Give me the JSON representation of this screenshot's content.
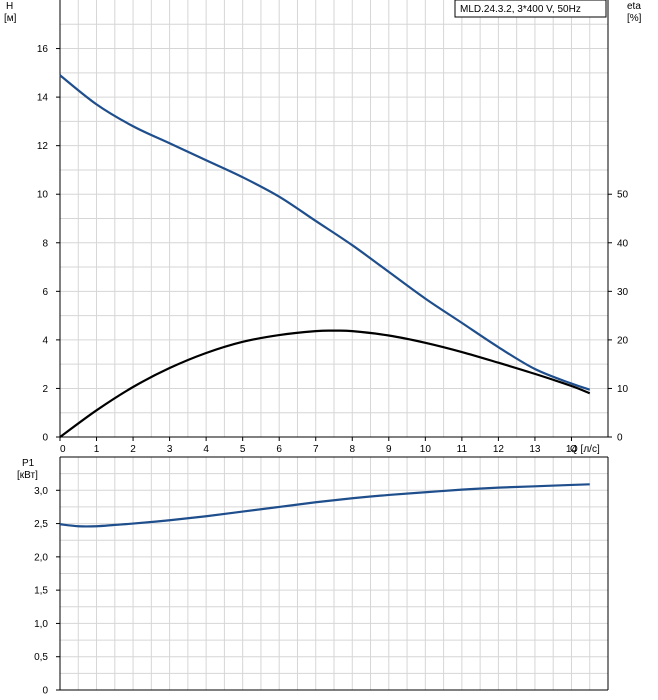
{
  "legend": {
    "label": "MLD.24.3.2, 3*400 V, 50Hz"
  },
  "colors": {
    "head_curve": "#1f4e8c",
    "eta_curve": "#000000",
    "power_curve": "#1f4e8c",
    "grid": "#d6d6d6"
  },
  "chart_data": [
    {
      "type": "line",
      "title": "",
      "xlabel": "Q [л/с]",
      "x_unit_label": "Q [л/с]",
      "xlim": [
        0,
        15
      ],
      "x_ticks": [
        0,
        1,
        2,
        3,
        4,
        5,
        6,
        7,
        8,
        9,
        10,
        11,
        12,
        13,
        14
      ],
      "x_tick_labels": [
        "0",
        "1",
        "2",
        "3",
        "4",
        "5",
        "6",
        "7",
        "8",
        "9",
        "10",
        "11",
        "12",
        "13",
        "14"
      ],
      "ylabel": "H",
      "ylabel_unit": "[м]",
      "ylim": [
        0,
        18
      ],
      "y_ticks": [
        0,
        2,
        4,
        6,
        8,
        10,
        12,
        14,
        16
      ],
      "y_tick_labels": [
        "0",
        "2",
        "4",
        "6",
        "8",
        "10",
        "12",
        "14",
        "16"
      ],
      "y2label": "eta",
      "y2label_unit": "[%]",
      "y2lim": [
        0,
        90
      ],
      "y2_ticks": [
        0,
        10,
        20,
        30,
        40,
        50
      ],
      "y2_tick_labels": [
        "0",
        "10",
        "20",
        "30",
        "40",
        "50"
      ],
      "grid": true,
      "legend_position": "top-right",
      "series": [
        {
          "name": "MLD.24.3.2, 3*400 V, 50Hz",
          "axis": "left",
          "x": [
            0,
            1,
            2,
            3,
            4,
            5,
            6,
            7,
            8,
            9,
            10,
            11,
            12,
            13,
            14,
            14.5
          ],
          "y": [
            14.9,
            13.7,
            12.8,
            12.1,
            11.4,
            10.7,
            9.9,
            8.9,
            7.9,
            6.8,
            5.7,
            4.7,
            3.7,
            2.8,
            2.2,
            1.95
          ]
        },
        {
          "name": "",
          "axis": "right",
          "x": [
            0,
            1,
            2,
            3,
            4,
            5,
            6,
            7,
            7.5,
            8,
            9,
            10,
            11,
            12,
            13,
            14,
            14.5
          ],
          "y": [
            0,
            5.5,
            10.3,
            14.2,
            17.3,
            19.6,
            21.0,
            21.8,
            21.9,
            21.8,
            20.9,
            19.4,
            17.5,
            15.3,
            13.0,
            10.5,
            9.0
          ]
        }
      ]
    },
    {
      "type": "line",
      "title": "",
      "xlabel": "",
      "xlim": [
        0,
        15
      ],
      "ylabel": "P1",
      "ylabel_unit": "[кВт]",
      "ylim": [
        0,
        3.5
      ],
      "y_ticks": [
        0,
        0.5,
        1.0,
        1.5,
        2.0,
        2.5,
        3.0
      ],
      "y_tick_labels": [
        "0",
        "0,5",
        "1,0",
        "1,5",
        "2,0",
        "2,5",
        "3,0"
      ],
      "grid": true,
      "series": [
        {
          "name": "",
          "x": [
            0,
            0.5,
            1,
            1.5,
            2,
            3,
            4,
            5,
            6,
            7,
            8,
            9,
            10,
            11,
            12,
            13,
            14,
            14.5
          ],
          "y": [
            2.49,
            2.46,
            2.46,
            2.48,
            2.5,
            2.55,
            2.61,
            2.68,
            2.75,
            2.82,
            2.88,
            2.93,
            2.97,
            3.01,
            3.04,
            3.06,
            3.08,
            3.09
          ]
        }
      ]
    }
  ]
}
